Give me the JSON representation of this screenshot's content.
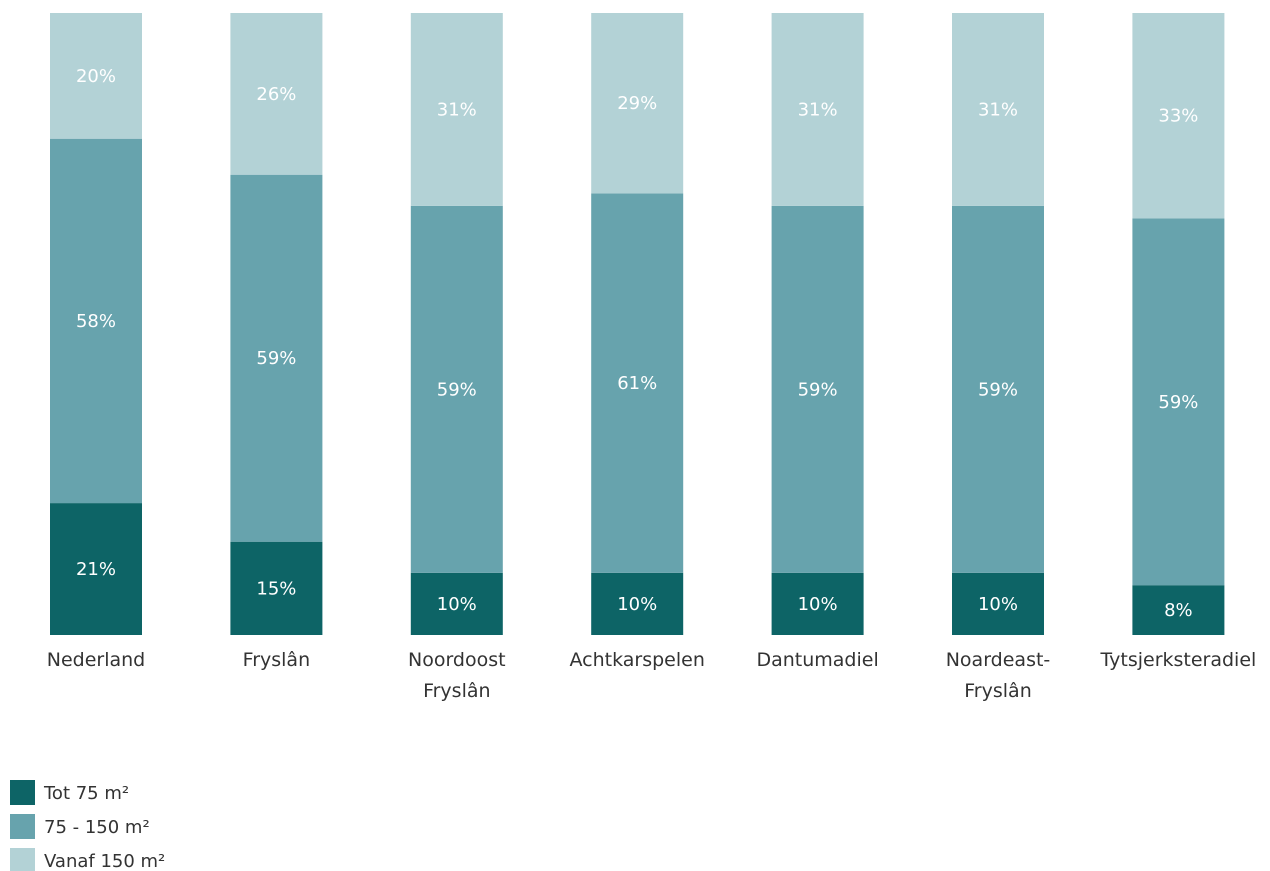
{
  "chart_data": {
    "type": "bar",
    "stacked": true,
    "normalized_percent": true,
    "categories": [
      [
        "Nederland"
      ],
      [
        "Fryslân"
      ],
      [
        "Noordoost",
        "Fryslân"
      ],
      [
        "Achtkarspelen"
      ],
      [
        "Dantumadiel"
      ],
      [
        "Noardeast-",
        "Fryslân"
      ],
      [
        "Tytsjerksteradiel"
      ]
    ],
    "series": [
      {
        "name": "Tot 75 m²",
        "color": "#0d6466",
        "values": [
          21,
          15,
          10,
          10,
          10,
          10,
          8
        ]
      },
      {
        "name": "75 - 150 m²",
        "color": "#67a3ad",
        "values": [
          58,
          59,
          59,
          61,
          59,
          59,
          59
        ]
      },
      {
        "name": "Vanaf 150 m²",
        "color": "#b3d2d6",
        "values": [
          20,
          26,
          31,
          29,
          31,
          31,
          33
        ]
      }
    ],
    "value_suffix": "%",
    "legend_position": "bottom-left",
    "grid": false
  }
}
